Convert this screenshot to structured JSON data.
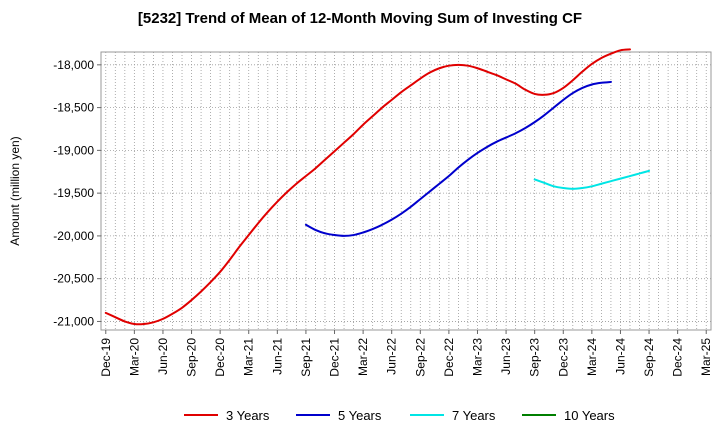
{
  "chart_data": {
    "type": "line",
    "title": "[5232]  Trend of Mean of 12-Month Moving Sum of Investing CF",
    "xlabel": "",
    "ylabel": "Amount (million yen)",
    "ylim": [
      -21100,
      -17850
    ],
    "y_ticks": [
      -18000,
      -18500,
      -19000,
      -19500,
      -20000,
      -20500,
      -21000
    ],
    "y_tick_labels": [
      "-18,000",
      "-18,500",
      "-19,000",
      "-19,500",
      "-20,000",
      "-20,500",
      "-21,000"
    ],
    "x_tick_labels": [
      "Dec-19",
      "Mar-20",
      "Jun-20",
      "Sep-20",
      "Dec-20",
      "Mar-21",
      "Jun-21",
      "Sep-21",
      "Dec-21",
      "Mar-22",
      "Jun-22",
      "Sep-22",
      "Dec-22",
      "Mar-23",
      "Jun-23",
      "Sep-23",
      "Dec-23",
      "Mar-24",
      "Jun-24",
      "Sep-24",
      "Dec-24",
      "Mar-25"
    ],
    "x_months": [
      "2019-12",
      "2020-01",
      "2020-02",
      "2020-03",
      "2020-04",
      "2020-05",
      "2020-06",
      "2020-07",
      "2020-08",
      "2020-09",
      "2020-10",
      "2020-11",
      "2020-12",
      "2021-01",
      "2021-02",
      "2021-03",
      "2021-04",
      "2021-05",
      "2021-06",
      "2021-07",
      "2021-08",
      "2021-09",
      "2021-10",
      "2021-11",
      "2021-12",
      "2022-01",
      "2022-02",
      "2022-03",
      "2022-04",
      "2022-05",
      "2022-06",
      "2022-07",
      "2022-08",
      "2022-09",
      "2022-10",
      "2022-11",
      "2022-12",
      "2023-01",
      "2023-02",
      "2023-03",
      "2023-04",
      "2023-05",
      "2023-06",
      "2023-07",
      "2023-08",
      "2023-09",
      "2023-10",
      "2023-11",
      "2023-12",
      "2024-01",
      "2024-02",
      "2024-03",
      "2024-04",
      "2024-05",
      "2024-06",
      "2024-07",
      "2024-08",
      "2024-09",
      "2024-10",
      "2024-11",
      "2024-12",
      "2025-01",
      "2025-02",
      "2025-03"
    ],
    "grid": true,
    "legend_position": "bottom",
    "series": [
      {
        "name": "3 Years",
        "color": "#e00000",
        "start_index": 0,
        "values": [
          -20900,
          -20950,
          -21000,
          -21030,
          -21030,
          -21010,
          -20970,
          -20910,
          -20840,
          -20750,
          -20650,
          -20540,
          -20420,
          -20280,
          -20130,
          -19990,
          -19850,
          -19720,
          -19600,
          -19490,
          -19390,
          -19300,
          -19210,
          -19110,
          -19010,
          -18910,
          -18810,
          -18700,
          -18600,
          -18500,
          -18410,
          -18320,
          -18240,
          -18160,
          -18090,
          -18040,
          -18010,
          -18000,
          -18010,
          -18040,
          -18080,
          -18120,
          -18170,
          -18220,
          -18290,
          -18340,
          -18350,
          -18330,
          -18270,
          -18180,
          -18080,
          -17990,
          -17920,
          -17870,
          -17830,
          -17820
        ]
      },
      {
        "name": "5 Years",
        "color": "#0000cc",
        "start_index": 21,
        "values": [
          -19870,
          -19930,
          -19970,
          -19990,
          -20000,
          -19990,
          -19960,
          -19920,
          -19870,
          -19810,
          -19740,
          -19660,
          -19570,
          -19480,
          -19390,
          -19300,
          -19200,
          -19110,
          -19030,
          -18960,
          -18900,
          -18850,
          -18800,
          -18740,
          -18670,
          -18590,
          -18500,
          -18410,
          -18330,
          -18270,
          -18230,
          -18210,
          -18200
        ]
      },
      {
        "name": "7 Years",
        "color": "#00e5e5",
        "start_index": 45,
        "values": [
          -19340,
          -19380,
          -19420,
          -19440,
          -19450,
          -19440,
          -19420,
          -19390,
          -19360,
          -19330,
          -19300,
          -19270,
          -19240
        ]
      },
      {
        "name": "10 Years",
        "color": "#007f00",
        "start_index": 0,
        "values": []
      }
    ]
  }
}
